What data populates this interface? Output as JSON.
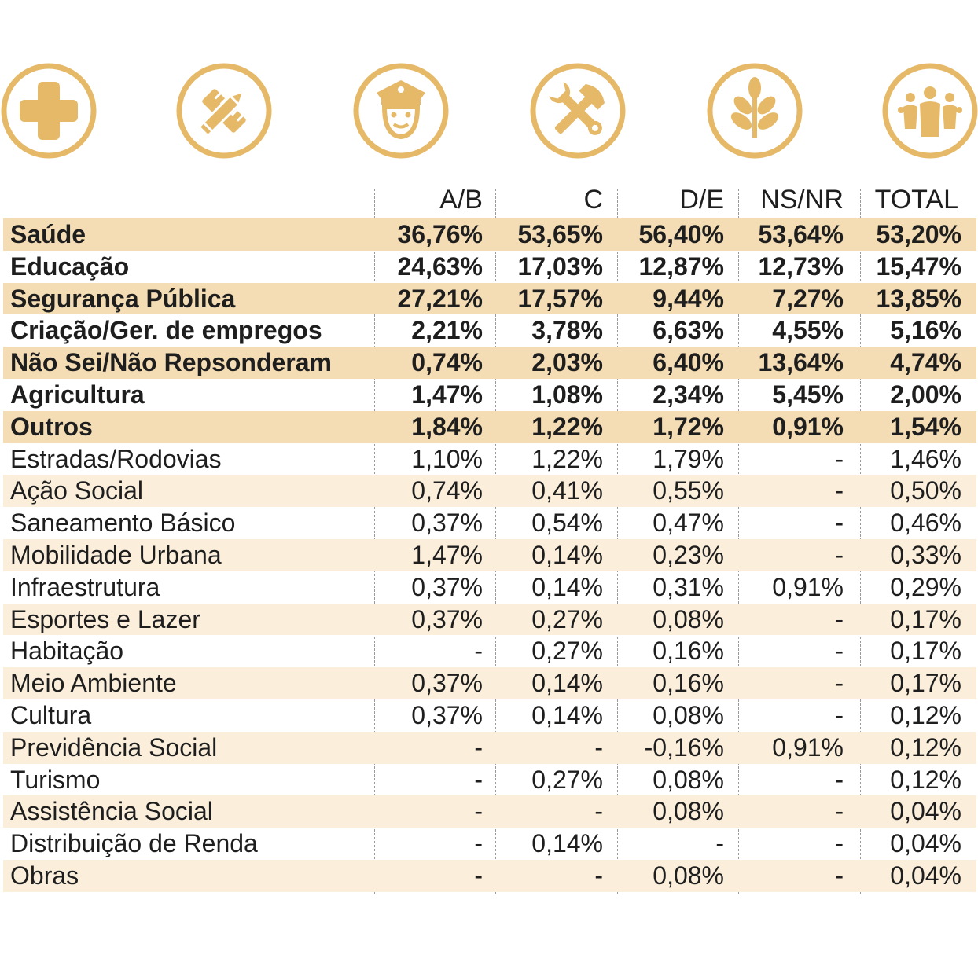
{
  "colors": {
    "accent": "#e5b968",
    "shade_strong": "#f4ddb4",
    "shade_light": "#fbefdc",
    "text": "#1e1e1e"
  },
  "icons": [
    "health-cross-icon",
    "education-pencil-ruler-icon",
    "police-officer-icon",
    "tools-wrench-hammer-icon",
    "agriculture-plant-icon",
    "people-group-icon"
  ],
  "chart_data": {
    "type": "table",
    "columns": [
      "A/B",
      "C",
      "D/E",
      "NS/NR",
      "TOTAL"
    ],
    "rows": [
      {
        "label": "Saúde",
        "values": [
          "36,76%",
          "53,65%",
          "56,40%",
          "53,64%",
          "53,20%"
        ],
        "bold": true,
        "shade": "strong"
      },
      {
        "label": "Educação",
        "values": [
          "24,63%",
          "17,03%",
          "12,87%",
          "12,73%",
          "15,47%"
        ],
        "bold": true,
        "shade": "none"
      },
      {
        "label": "Segurança Pública",
        "values": [
          "27,21%",
          "17,57%",
          "9,44%",
          "7,27%",
          "13,85%"
        ],
        "bold": true,
        "shade": "strong"
      },
      {
        "label": "Criação/Ger. de empregos",
        "values": [
          "2,21%",
          "3,78%",
          "6,63%",
          "4,55%",
          "5,16%"
        ],
        "bold": true,
        "shade": "none"
      },
      {
        "label": "Não Sei/Não Repsonderam",
        "values": [
          "0,74%",
          "2,03%",
          "6,40%",
          "13,64%",
          "4,74%"
        ],
        "bold": true,
        "shade": "strong"
      },
      {
        "label": "Agricultura",
        "values": [
          "1,47%",
          "1,08%",
          "2,34%",
          "5,45%",
          "2,00%"
        ],
        "bold": true,
        "shade": "none"
      },
      {
        "label": "Outros",
        "values": [
          "1,84%",
          "1,22%",
          "1,72%",
          "0,91%",
          "1,54%"
        ],
        "bold": true,
        "shade": "strong"
      },
      {
        "label": "Estradas/Rodovias",
        "values": [
          "1,10%",
          "1,22%",
          "1,79%",
          "-",
          "1,46%"
        ],
        "bold": false,
        "shade": "none"
      },
      {
        "label": "Ação Social",
        "values": [
          "0,74%",
          "0,41%",
          "0,55%",
          "-",
          "0,50%"
        ],
        "bold": false,
        "shade": "light"
      },
      {
        "label": "Saneamento Básico",
        "values": [
          "0,37%",
          "0,54%",
          "0,47%",
          "-",
          "0,46%"
        ],
        "bold": false,
        "shade": "none"
      },
      {
        "label": "Mobilidade Urbana",
        "values": [
          "1,47%",
          "0,14%",
          "0,23%",
          "-",
          "0,33%"
        ],
        "bold": false,
        "shade": "light"
      },
      {
        "label": "Infraestrutura",
        "values": [
          "0,37%",
          "0,14%",
          "0,31%",
          "0,91%",
          "0,29%"
        ],
        "bold": false,
        "shade": "none"
      },
      {
        "label": "Esportes e Lazer",
        "values": [
          "0,37%",
          "0,27%",
          "0,08%",
          "-",
          "0,17%"
        ],
        "bold": false,
        "shade": "light"
      },
      {
        "label": "Habitação",
        "values": [
          "-",
          "0,27%",
          "0,16%",
          "-",
          "0,17%"
        ],
        "bold": false,
        "shade": "none"
      },
      {
        "label": "Meio Ambiente",
        "values": [
          "0,37%",
          "0,14%",
          "0,16%",
          "-",
          "0,17%"
        ],
        "bold": false,
        "shade": "light"
      },
      {
        "label": "Cultura",
        "values": [
          "0,37%",
          "0,14%",
          "0,08%",
          "-",
          "0,12%"
        ],
        "bold": false,
        "shade": "none"
      },
      {
        "label": "Previdência Social",
        "values": [
          "-",
          "-",
          "-0,16%",
          "0,91%",
          "0,12%"
        ],
        "bold": false,
        "shade": "light"
      },
      {
        "label": "Turismo",
        "values": [
          "-",
          "0,27%",
          "0,08%",
          "-",
          "0,12%"
        ],
        "bold": false,
        "shade": "none"
      },
      {
        "label": "Assistência Social",
        "values": [
          "-",
          "-",
          "0,08%",
          "-",
          "0,04%"
        ],
        "bold": false,
        "shade": "light"
      },
      {
        "label": "Distribuição de Renda",
        "values": [
          "-",
          "0,14%",
          "-",
          "-",
          "0,04%"
        ],
        "bold": false,
        "shade": "none"
      },
      {
        "label": "Obras",
        "values": [
          "-",
          "-",
          "0,08%",
          "-",
          "0,04%"
        ],
        "bold": false,
        "shade": "light"
      }
    ]
  }
}
